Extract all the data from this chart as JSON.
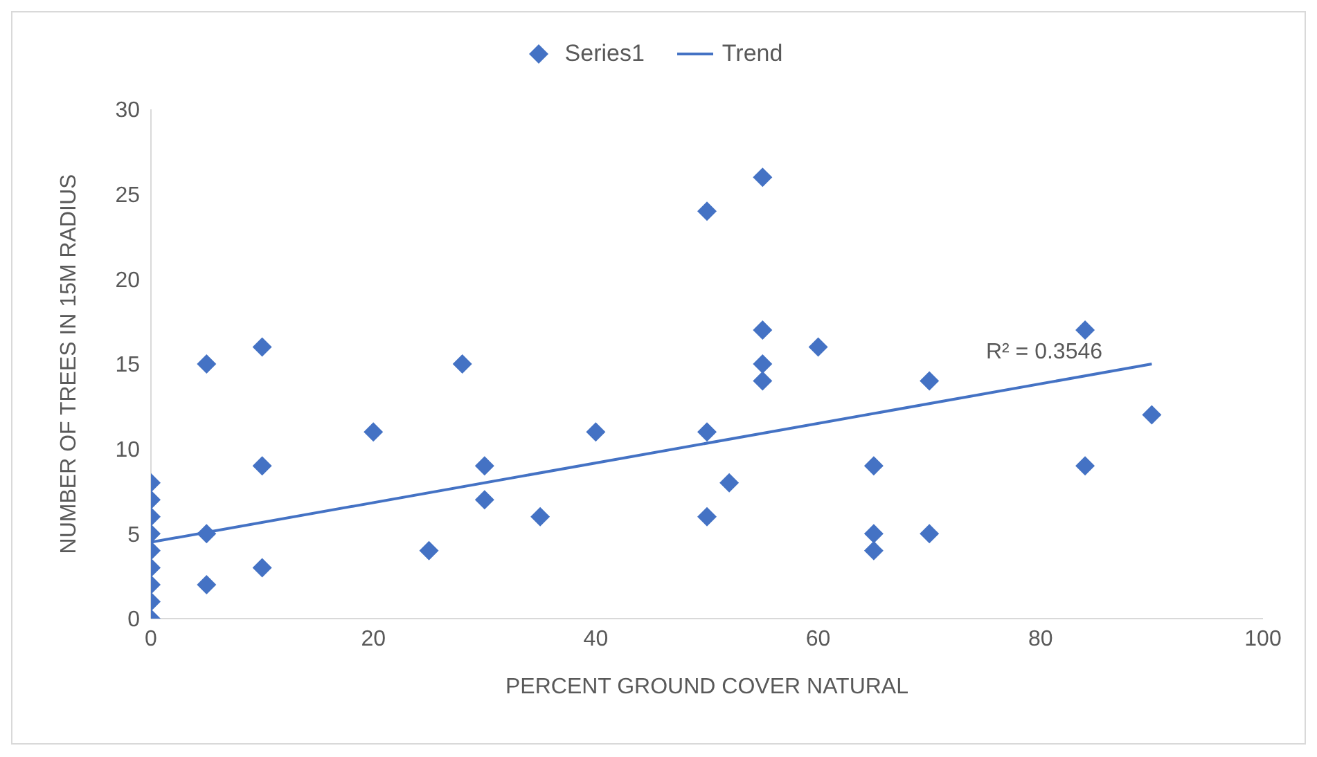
{
  "chart_data": {
    "type": "scatter",
    "xlabel": "PERCENT GROUND COVER NATURAL",
    "ylabel": "NUMBER OF TREES IN 15M RADIUS",
    "xlim": [
      0,
      100
    ],
    "xticks": [
      0,
      20,
      40,
      60,
      80,
      100
    ],
    "ylim": [
      0,
      30
    ],
    "yticks": [
      0,
      5,
      10,
      15,
      20,
      25,
      30
    ],
    "grid": false,
    "legend": "top",
    "marker": "diamond",
    "series": [
      {
        "name": "Series1",
        "color": "#4472c4",
        "x": [
          0,
          0,
          0,
          0,
          0,
          0,
          0,
          0,
          0,
          5,
          5,
          5,
          10,
          10,
          10,
          20,
          25,
          28,
          30,
          30,
          35,
          40,
          50,
          50,
          50,
          52,
          55,
          55,
          55,
          55,
          60,
          65,
          65,
          65,
          70,
          70,
          84,
          84,
          90
        ],
        "values": [
          0,
          1,
          2,
          3,
          4,
          5,
          6,
          7,
          8,
          15,
          5,
          2,
          16,
          9,
          3,
          11,
          4,
          15,
          9,
          7,
          6,
          11,
          24,
          11,
          6,
          8,
          26,
          17,
          15,
          14,
          16,
          9,
          5,
          4,
          14,
          5,
          17,
          9,
          12
        ]
      },
      {
        "name": "Trend",
        "type": "line",
        "color": "#4472c4",
        "line_style": "solid",
        "marker": "none",
        "x": [
          0,
          90
        ],
        "values": [
          4.5,
          15.0
        ]
      }
    ],
    "annotations": [
      "R² = 0.3546"
    ]
  }
}
